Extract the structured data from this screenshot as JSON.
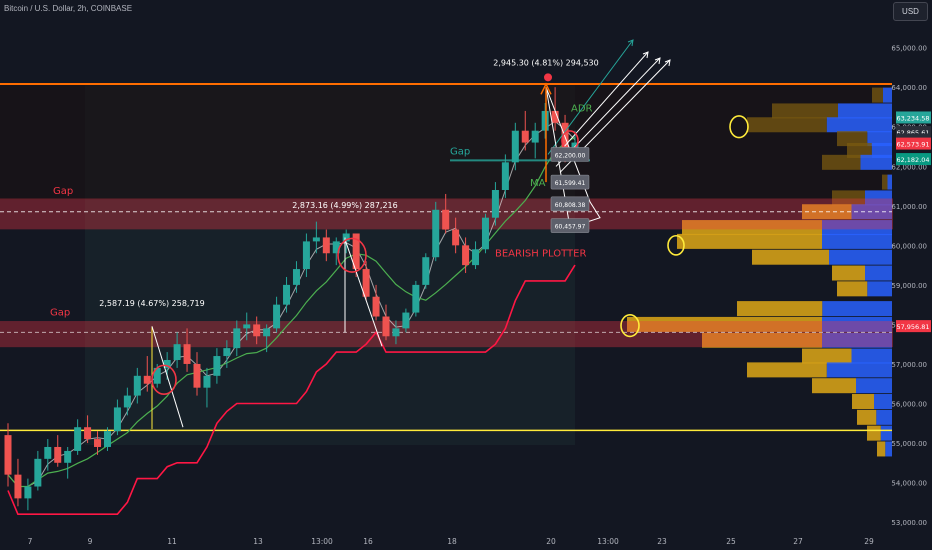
{
  "header": {
    "symbol": "Bitcoin / U.S. Dollar, 2h, COINBASE",
    "currency_button": "USD"
  },
  "chart_data": {
    "type": "candlestick",
    "x_ticks": [
      "7",
      "9",
      "11",
      "13",
      "13:00",
      "16",
      "18",
      "20",
      "13:00",
      "23",
      "25",
      "27",
      "29"
    ],
    "y_ticks": [
      53000,
      54000,
      55000,
      56000,
      57000,
      58000,
      59000,
      60000,
      61000,
      62000,
      63000,
      64000,
      65000
    ],
    "y_tick_labels": [
      "53,000.00",
      "54,000.00",
      "55,000.00",
      "56,000.00",
      "57,000.00",
      "58,000.00",
      "59,000.00",
      "60,000.00",
      "61,000.00",
      "62,000.00",
      "63,000.00",
      "64,000.00",
      "65,000.00"
    ],
    "ylim": [
      52800,
      65700
    ],
    "price_tags": [
      {
        "label": "63,234.58",
        "value": 63234.58,
        "color": "#26a69a"
      },
      {
        "label": "62,865.61",
        "value": 62865.61,
        "color": "#2a2e39"
      },
      {
        "label": "46:50",
        "value": 62680,
        "color": "#2a2e39"
      },
      {
        "label": "62,573.91",
        "value": 62573.91,
        "color": "#f23645"
      },
      {
        "label": "62,182.04",
        "value": 62182.04,
        "color": "#089981"
      },
      {
        "label": "57,956.81",
        "value": 57956.81,
        "color": "#f23645"
      }
    ],
    "zones": [
      {
        "name": "Gap",
        "from": 60430,
        "to": 61160,
        "label": "Gap"
      },
      {
        "name": "Gap",
        "from": 57450,
        "to": 58060,
        "label": "Gap"
      }
    ],
    "lines": [
      {
        "name": "top-line",
        "value": 64080,
        "color": "#ff6d00"
      },
      {
        "name": "support-line",
        "value": 55320,
        "color": "#ffeb3b"
      },
      {
        "name": "dashed-mid-upper",
        "value": 60850,
        "color": "#ffffff"
      },
      {
        "name": "dashed-mid-lower",
        "value": 57800,
        "color": "#ffffff"
      }
    ],
    "annotations": [
      {
        "text": "2,945.30 (4.81%) 294,530"
      },
      {
        "text": "2,873.16 (4.99%) 287,216"
      },
      {
        "text": "2,587.19 (4.67%) 258,719"
      },
      {
        "text": "ADR"
      },
      {
        "text": "Gap"
      },
      {
        "text": "MA"
      },
      {
        "text": "BEARISH PLOTTER"
      }
    ],
    "order_labels": [
      "62,200.00",
      "61,599.41",
      "60,808.38",
      "60,457.97"
    ],
    "candles_ohlc": [
      [
        55200,
        55500,
        53900,
        54200
      ],
      [
        54200,
        54600,
        53400,
        53600
      ],
      [
        53600,
        54100,
        53300,
        53900
      ],
      [
        53900,
        54800,
        53800,
        54600
      ],
      [
        54600,
        55100,
        54300,
        54900
      ],
      [
        54900,
        55200,
        54400,
        54500
      ],
      [
        54500,
        54900,
        54100,
        54800
      ],
      [
        54800,
        55600,
        54700,
        55400
      ],
      [
        55400,
        55700,
        55000,
        55100
      ],
      [
        55100,
        55300,
        54700,
        54900
      ],
      [
        54900,
        55400,
        54800,
        55300
      ],
      [
        55300,
        56100,
        55200,
        55900
      ],
      [
        55900,
        56400,
        55700,
        56200
      ],
      [
        56200,
        56900,
        56000,
        56700
      ],
      [
        56700,
        57200,
        56300,
        56500
      ],
      [
        56500,
        57000,
        56400,
        56900
      ],
      [
        56900,
        57300,
        56600,
        57100
      ],
      [
        57100,
        57800,
        56900,
        57500
      ],
      [
        57500,
        57900,
        56800,
        57000
      ],
      [
        57000,
        57300,
        56200,
        56400
      ],
      [
        56400,
        56900,
        55900,
        56700
      ],
      [
        56700,
        57400,
        56500,
        57200
      ],
      [
        57200,
        57600,
        56900,
        57400
      ],
      [
        57400,
        58100,
        57200,
        57900
      ],
      [
        57900,
        58300,
        57600,
        58000
      ],
      [
        58000,
        58200,
        57500,
        57700
      ],
      [
        57700,
        58000,
        57300,
        57900
      ],
      [
        57900,
        58700,
        57800,
        58500
      ],
      [
        58500,
        59200,
        58300,
        59000
      ],
      [
        59000,
        59600,
        58800,
        59400
      ],
      [
        59400,
        60300,
        59200,
        60100
      ],
      [
        60100,
        60600,
        59800,
        60200
      ],
      [
        60200,
        60400,
        59600,
        59800
      ],
      [
        59800,
        60200,
        59500,
        60100
      ],
      [
        60100,
        60400,
        59800,
        60300
      ],
      [
        60300,
        60300,
        59200,
        59400
      ],
      [
        59400,
        59600,
        58600,
        58700
      ],
      [
        58700,
        59000,
        58100,
        58200
      ],
      [
        58200,
        58500,
        57600,
        57700
      ],
      [
        57700,
        58100,
        57500,
        57900
      ],
      [
        57900,
        58400,
        57800,
        58300
      ],
      [
        58300,
        59100,
        58200,
        59000
      ],
      [
        59000,
        59800,
        58900,
        59700
      ],
      [
        59700,
        61100,
        59600,
        60900
      ],
      [
        60900,
        61300,
        60300,
        60400
      ],
      [
        60400,
        60700,
        59800,
        60000
      ],
      [
        60000,
        60200,
        59300,
        59500
      ],
      [
        59500,
        60100,
        59400,
        59900
      ],
      [
        59900,
        60800,
        59800,
        60700
      ],
      [
        60700,
        61600,
        60500,
        61400
      ],
      [
        61400,
        62300,
        61200,
        62100
      ],
      [
        62100,
        63100,
        61900,
        62900
      ],
      [
        62900,
        63400,
        62400,
        62600
      ],
      [
        62600,
        63100,
        62200,
        62900
      ],
      [
        62900,
        63600,
        62700,
        63400
      ],
      [
        63400,
        64000,
        62900,
        63100
      ],
      [
        63100,
        63300,
        62100,
        62300
      ],
      [
        62300,
        62900,
        62200,
        62600
      ]
    ],
    "volume_profile": [
      {
        "price": 63800,
        "width": 20
      },
      {
        "price": 63400,
        "width": 120
      },
      {
        "price": 63050,
        "width": 145
      },
      {
        "price": 62700,
        "width": 55
      },
      {
        "price": 62400,
        "width": 45
      },
      {
        "price": 62100,
        "width": 70
      },
      {
        "price": 61600,
        "width": 10
      },
      {
        "price": 61200,
        "width": 60
      },
      {
        "price": 60850,
        "width": 90
      },
      {
        "price": 60450,
        "width": 210
      },
      {
        "price": 60100,
        "width": 215
      },
      {
        "price": 59700,
        "width": 140
      },
      {
        "price": 59300,
        "width": 60
      },
      {
        "price": 58900,
        "width": 55
      },
      {
        "price": 58400,
        "width": 155
      },
      {
        "price": 58000,
        "width": 265
      },
      {
        "price": 57600,
        "width": 190
      },
      {
        "price": 57200,
        "width": 90
      },
      {
        "price": 56850,
        "width": 145
      },
      {
        "price": 56450,
        "width": 80
      },
      {
        "price": 56050,
        "width": 40
      },
      {
        "price": 55650,
        "width": 35
      },
      {
        "price": 55250,
        "width": 25
      },
      {
        "price": 54850,
        "width": 15
      }
    ]
  }
}
